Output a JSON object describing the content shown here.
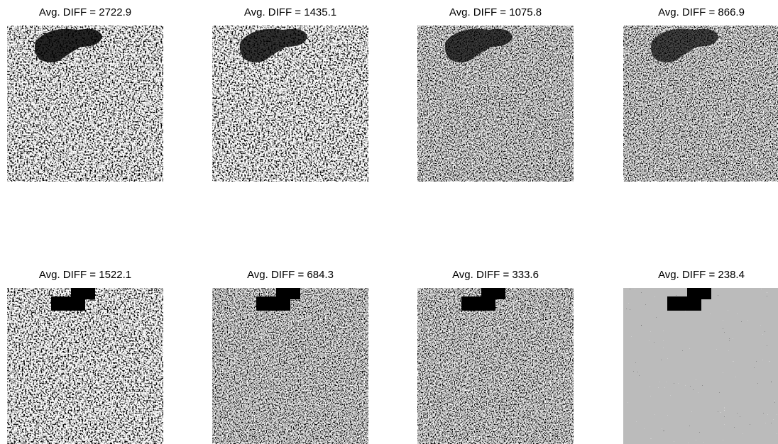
{
  "panels": [
    {
      "title": "Avg. DIFF = 2722.9"
    },
    {
      "title": "Avg. DIFF = 1435.1"
    },
    {
      "title": "Avg. DIFF = 1075.8"
    },
    {
      "title": "Avg. DIFF = 866.9"
    },
    {
      "title": "Avg. DIFF = 1522.1"
    },
    {
      "title": "Avg. DIFF = 684.3"
    },
    {
      "title": "Avg. DIFF = 333.6"
    },
    {
      "title": "Avg. DIFF = 238.4"
    }
  ]
}
